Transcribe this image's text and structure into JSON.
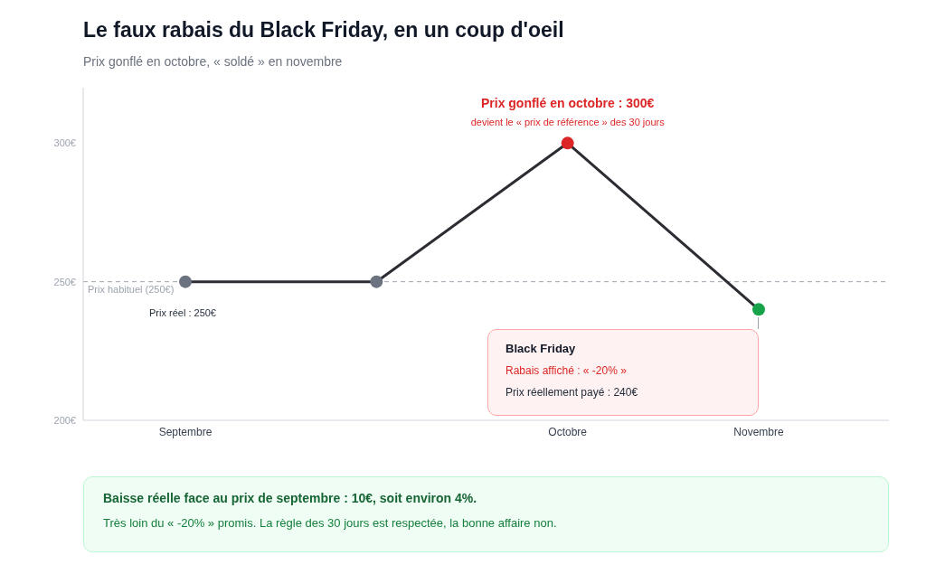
{
  "chart_data": {
    "type": "line",
    "title": "Le faux rabais du Black Friday, en un coup d'oeil",
    "subtitle": "Prix gonflé en octobre, « soldé » en novembre",
    "categories": [
      "Septembre",
      null,
      "Octobre",
      "Novembre"
    ],
    "series": [
      {
        "color": "#2b2d33",
        "values": [
          250,
          250,
          300,
          240
        ],
        "colors": [
          "#6b7280",
          "#6b7280",
          "#dc2626",
          "#16a34a"
        ]
      }
    ],
    "ylim": [
      200,
      320
    ],
    "yticks": [
      {
        "value": 200,
        "label": "200€"
      },
      {
        "value": 250,
        "label": "250€"
      },
      {
        "value": 300,
        "label": "300€"
      }
    ],
    "grid": false,
    "marker": "circle",
    "line_style": "solid",
    "ref_lines": [
      {
        "axis": "y",
        "value": 250,
        "label": "Prix habituel (250€)",
        "color": "#9ca3af",
        "line_style": "dashed"
      }
    ],
    "annotations": [
      "Prix gonflé en octobre : 300€",
      "devient le « prix de référence » des 30 jours",
      "Prix réel : 250€",
      "Black Friday",
      "Rabais affiché : « -20% »",
      "Prix réellement payé : 240€",
      "Baisse réelle face au prix de septembre : 10€, soit environ 4%.",
      "Très loin du « -20% » promis. La règle des 30 jours est respectée, la bonne affaire non."
    ]
  }
}
